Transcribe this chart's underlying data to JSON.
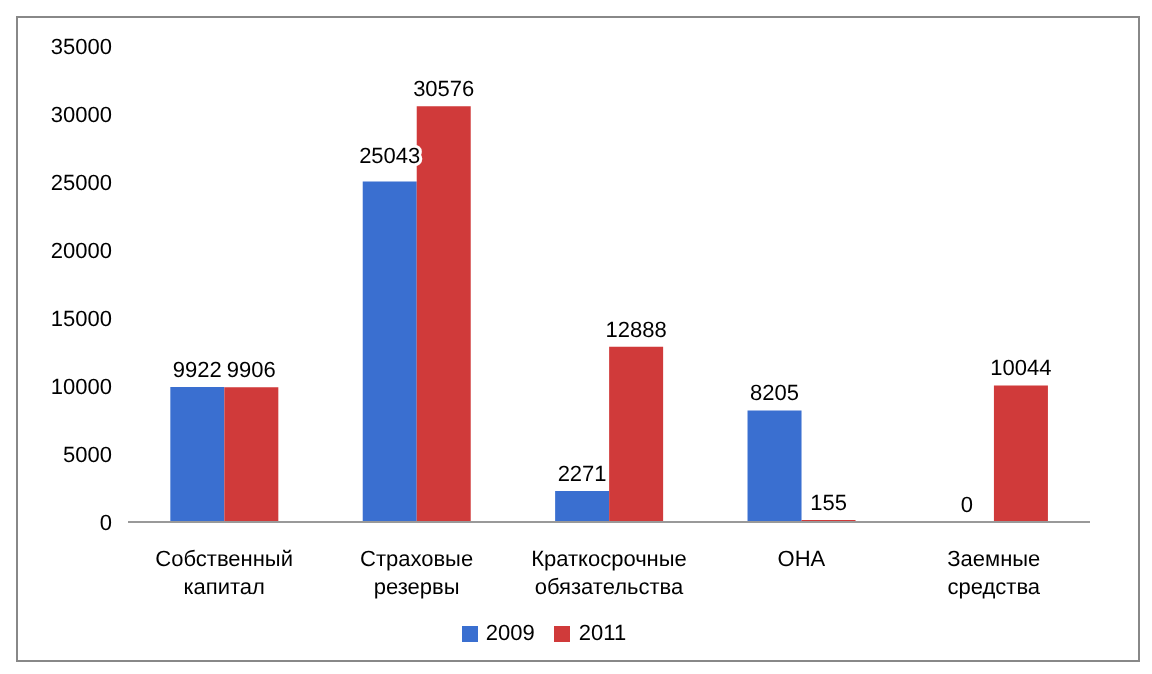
{
  "chart_data": {
    "type": "bar",
    "categories": [
      "Собственный капитал",
      "Страховые резервы",
      "Краткосрочные обязательства",
      "ОНА",
      "Заемные средства"
    ],
    "series": [
      {
        "name": "2009",
        "color": "#3a6fd0",
        "values": [
          9922,
          25043,
          2271,
          8205,
          0
        ]
      },
      {
        "name": "2011",
        "color": "#d03a3a",
        "values": [
          9906,
          30576,
          12888,
          155,
          10044
        ]
      }
    ],
    "ylim": [
      0,
      35000
    ],
    "yticks": [
      0,
      5000,
      10000,
      15000,
      20000,
      25000,
      30000,
      35000
    ],
    "grid": false,
    "legend": "bottom",
    "data_labels": true
  }
}
